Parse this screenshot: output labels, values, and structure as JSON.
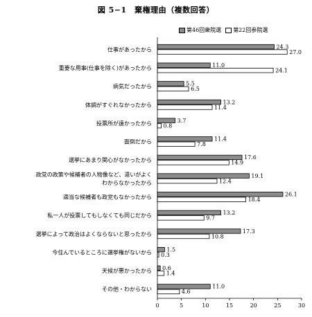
{
  "chart_data": {
    "type": "bar",
    "orientation": "horizontal",
    "title": "図 5−1　棄権理由（複数回答）",
    "categories": [
      "仕事があったから",
      "重要な用事(仕事を除く)があったから",
      "病気だったから",
      "体調がすぐれなかったから",
      "投票所が遠かったから",
      "面倒だから",
      "選挙にあまり関心がなかったから",
      "政党の政策や候補者の人物像など、違いがよくわからなかったから",
      "適当な候補者も政党もなかったから",
      "私一人が投票してもしなくても同じだから",
      "選挙によって政治はよくならないと思ったから",
      "今住んでいるところに選挙権がないから",
      "天候が悪かったから",
      "その他・わからない"
    ],
    "category_lines": [
      [
        "仕事があったから"
      ],
      [
        "重要な用事(仕事を除く)があったから"
      ],
      [
        "病気だったから"
      ],
      [
        "体調がすぐれなかったから"
      ],
      [
        "投票所が遠かったから"
      ],
      [
        "面倒だから"
      ],
      [
        "選挙にあまり関心がなかったから"
      ],
      [
        "政党の政策や候補者の人物像など、違いがよく",
        "わからなかったから"
      ],
      [
        "適当な候補者も政党もなかったから"
      ],
      [
        "私一人が投票してもしなくても同じだから"
      ],
      [
        "選挙によって政治はよくならないと思ったから"
      ],
      [
        "今住んでいるところに選挙権がないから"
      ],
      [
        "天候が悪かったから"
      ],
      [
        "その他・わからない"
      ]
    ],
    "series": [
      {
        "name": "第46回衆院選",
        "color": "#8c8c8c",
        "values": [
          24.3,
          11.0,
          5.5,
          13.2,
          3.7,
          11.4,
          17.6,
          19.1,
          26.1,
          13.2,
          17.3,
          1.5,
          0.6,
          11.0
        ]
      },
      {
        "name": "第22回参院選",
        "color": "#ffffff",
        "values": [
          27.0,
          24.1,
          6.5,
          11.4,
          0.8,
          7.8,
          14.9,
          12.4,
          18.4,
          9.7,
          10.8,
          0.3,
          1.4,
          4.6
        ]
      }
    ],
    "xlim": [
      0,
      30
    ],
    "xticks": [
      0,
      5,
      10,
      15,
      20,
      25,
      30
    ],
    "legend_position": "top-right",
    "grid": false
  }
}
